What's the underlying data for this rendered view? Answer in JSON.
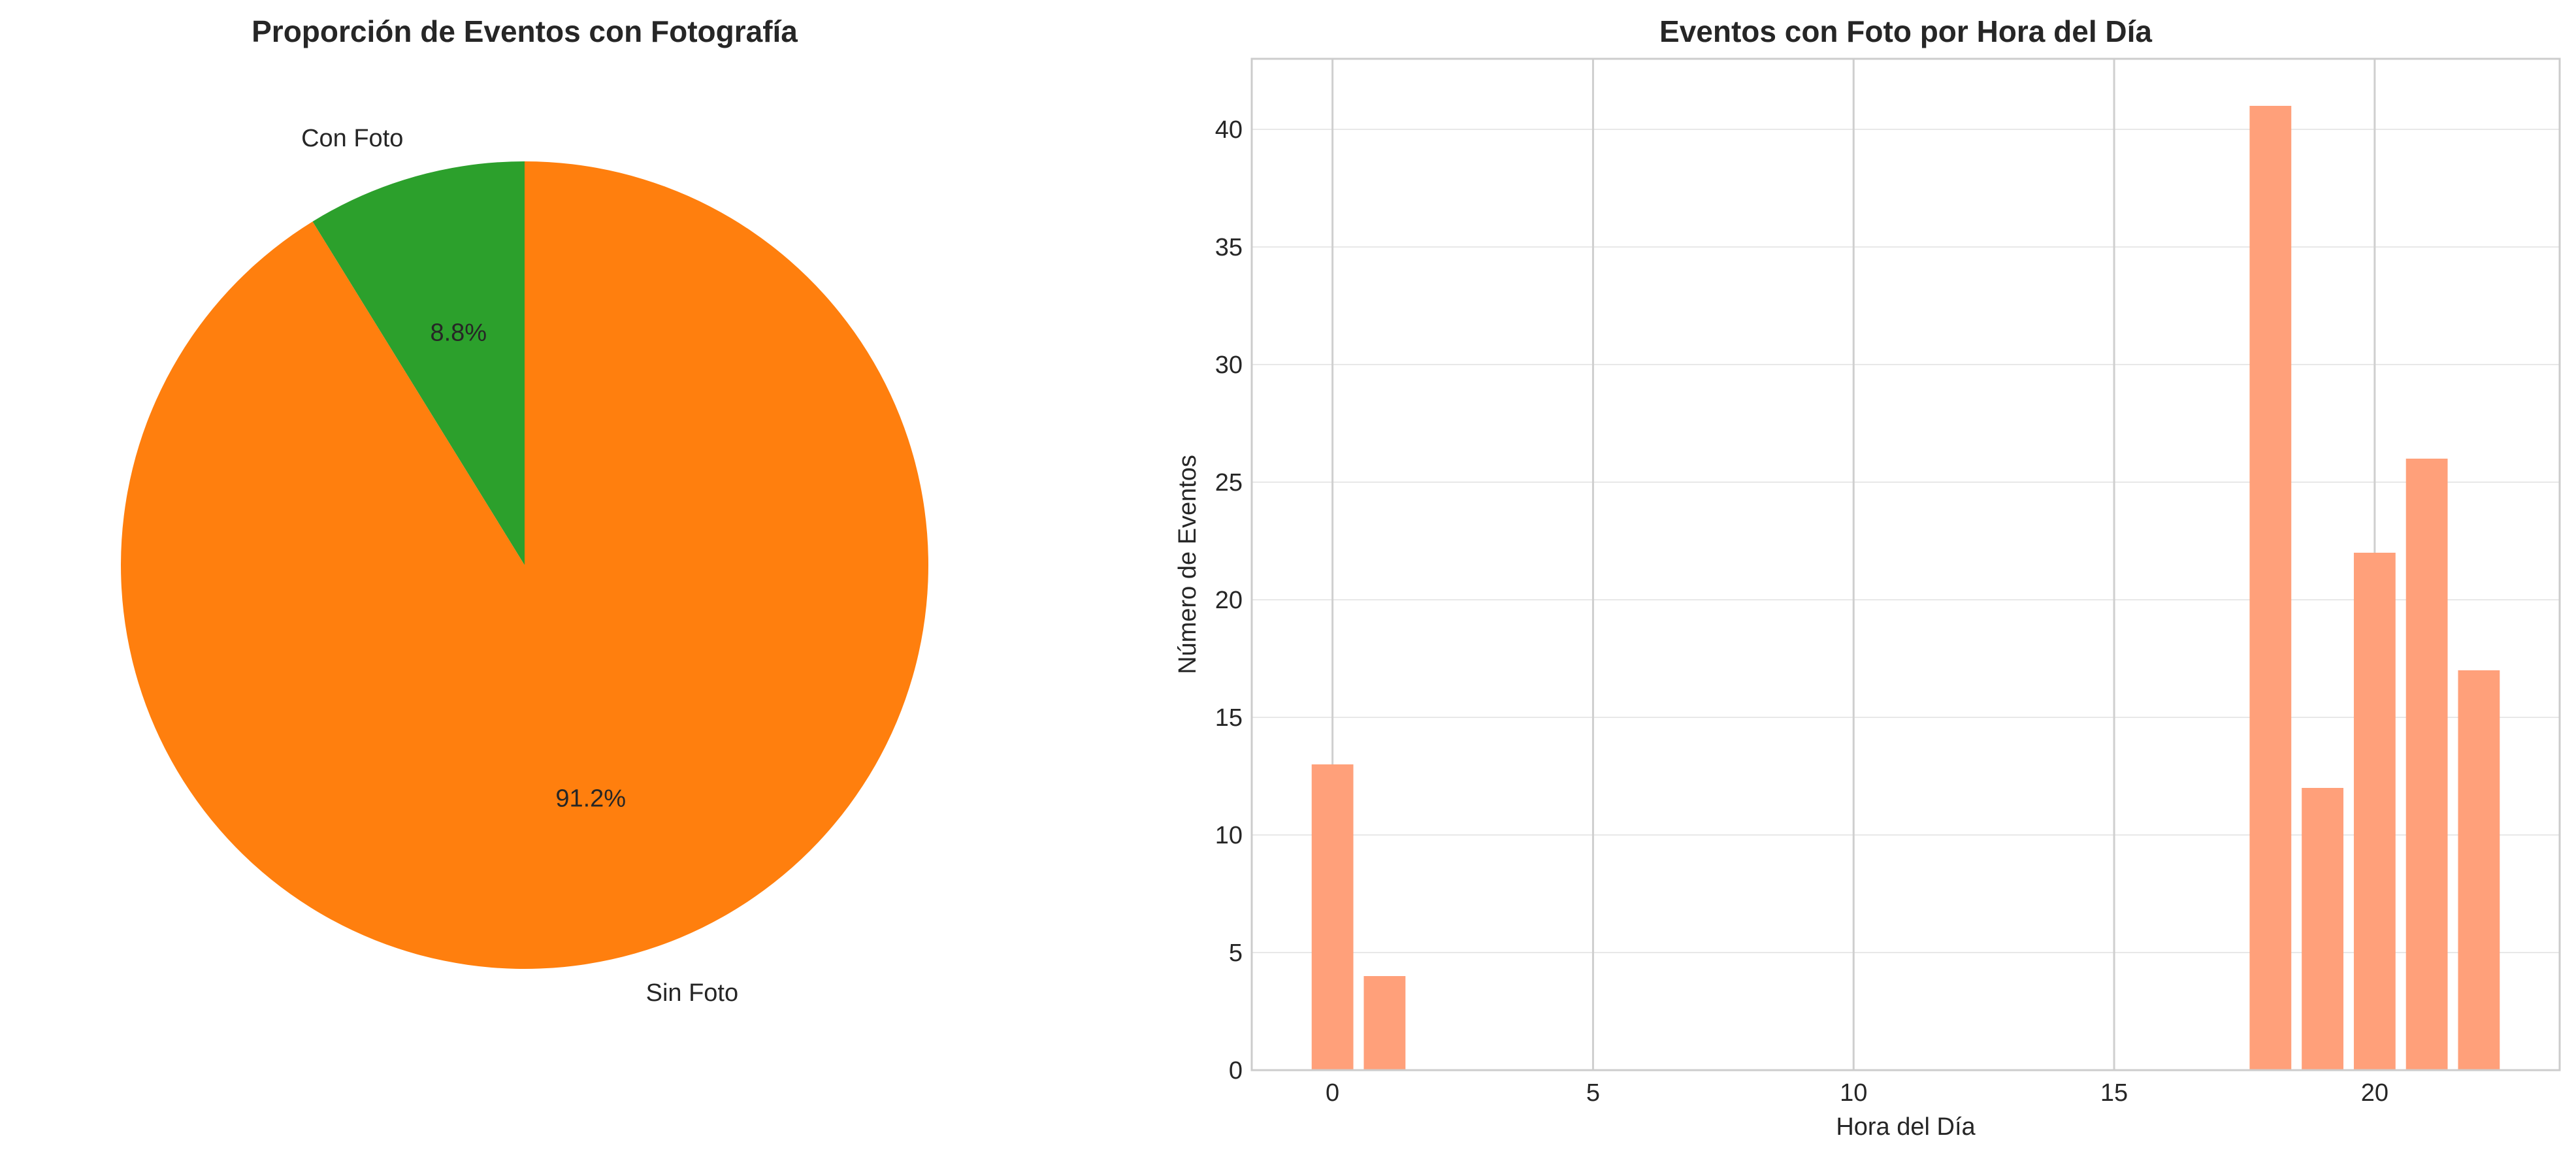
{
  "chart_data": [
    {
      "type": "pie",
      "title": "Proporción de Eventos con Fotografía",
      "labels": [
        "Con Foto",
        "Sin Foto"
      ],
      "values": [
        8.8,
        91.2
      ],
      "autopct_labels": [
        "8.8%",
        "91.2%"
      ],
      "colors": [
        "#2ca02c",
        "#ff7f0e"
      ],
      "start_angle_deg": 90,
      "legend": "none"
    },
    {
      "type": "bar",
      "title": "Eventos con Foto por Hora del Día",
      "xlabel": "Hora del Día",
      "ylabel": "Número de Eventos",
      "x": [
        0,
        1,
        18,
        19,
        20,
        21,
        22
      ],
      "values": [
        13,
        4,
        41,
        12,
        22,
        26,
        17
      ],
      "color": "#ffa07a",
      "xlim": [
        -1.55,
        23.55
      ],
      "ylim": [
        0,
        43
      ],
      "xticks": [
        0,
        5,
        10,
        15,
        20
      ],
      "yticks": [
        0,
        5,
        10,
        15,
        20,
        25,
        30,
        35,
        40
      ],
      "grid": true,
      "legend": "none"
    }
  ]
}
